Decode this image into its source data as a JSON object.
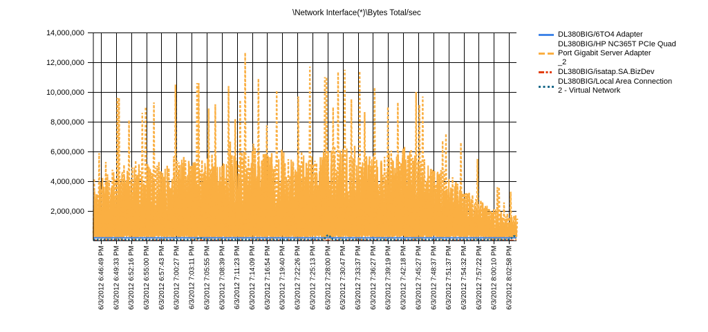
{
  "page": {
    "background": "#FFFFFF"
  },
  "chart_data": {
    "type": "line",
    "title": "\\Network Interface(*)\\Bytes Total/sec",
    "xlabel": "",
    "ylabel": "",
    "ylim": [
      0,
      14000000
    ],
    "y_tick_interval": 2000000,
    "y_tick_labels": [
      "2,000,000",
      "4,000,000",
      "6,000,000",
      "8,000,000",
      "10,000,000",
      "12,000,000",
      "14,000,000"
    ],
    "x_tick_labels": [
      "6/3/2012 6:46:49 PM",
      "6/3/2012 6:49:33 PM",
      "6/3/2012 6:52:16 PM",
      "6/3/2012 6:55:00 PM",
      "6/3/2012 6:57:43 PM",
      "6/3/2012 7:00:27 PM",
      "6/3/2012 7:03:11 PM",
      "6/3/2012 7:05:55 PM",
      "6/3/2012 7:08:39 PM",
      "6/3/2012 7:11:23 PM",
      "6/3/2012 7:14:09 PM",
      "6/3/2012 7:16:54 PM",
      "6/3/2012 7:19:40 PM",
      "6/3/2012 7:22:26 PM",
      "6/3/2012 7:25:13 PM",
      "6/3/2012 7:28:00 PM",
      "6/3/2012 7:30:47 PM",
      "6/3/2012 7:33:37 PM",
      "6/3/2012 7:36:27 PM",
      "6/3/2012 7:39:19 PM",
      "6/3/2012 7:42:18 PM",
      "6/3/2012 7:45:27 PM",
      "6/3/2012 7:48:37 PM",
      "6/3/2012 7:51:37 PM",
      "6/3/2012 7:54:32 PM",
      "6/3/2012 7:57:22 PM",
      "6/3/2012 8:00:10 PM",
      "6/3/2012 8:02:58 PM"
    ],
    "grid": true,
    "legend_position": "right",
    "series": [
      {
        "name": "DL380BIG/6TO4 Adapter",
        "color": "#4285E8",
        "style": "solid",
        "kind": "constant",
        "value": 200000
      },
      {
        "name": "DL380BIG/HP NC365T PCIe Quad Port Gigabit Server Adapter _2",
        "color": "#FAAF42",
        "style": "dashed",
        "kind": "noisy",
        "bulk_bottom": 250000,
        "bulk_top_by_tick": [
          4200000,
          5000000,
          5200000,
          5600000,
          5200000,
          5800000,
          5400000,
          6000000,
          5600000,
          6200000,
          6500000,
          6000000,
          6300000,
          6000000,
          6400000,
          6200000,
          6600000,
          6300000,
          6000000,
          6200000,
          6400000,
          5800000,
          5000000,
          4400000,
          3600000,
          2800000,
          2200000,
          1800000
        ],
        "peaks": [
          [
            0.057,
            9600000
          ],
          [
            0.082,
            8100000
          ],
          [
            0.114,
            8600000
          ],
          [
            0.142,
            9300000
          ],
          [
            0.193,
            10500000
          ],
          [
            0.245,
            10600000
          ],
          [
            0.27,
            8900000
          ],
          [
            0.319,
            10400000
          ],
          [
            0.356,
            12650000
          ],
          [
            0.389,
            10900000
          ],
          [
            0.433,
            10100000
          ],
          [
            0.482,
            9700000
          ],
          [
            0.51,
            11700000
          ],
          [
            0.547,
            11000000
          ],
          [
            0.575,
            11350000
          ],
          [
            0.592,
            11500000
          ],
          [
            0.629,
            11400000
          ],
          [
            0.662,
            10300000
          ],
          [
            0.694,
            9000000
          ],
          [
            0.719,
            9300000
          ],
          [
            0.76,
            10000000
          ],
          [
            0.776,
            9700000
          ],
          [
            0.833,
            7200000
          ],
          [
            0.866,
            6600000
          ],
          [
            0.907,
            5500000
          ],
          [
            0.955,
            3600000
          ],
          [
            0.985,
            3300000
          ]
        ],
        "noise_seed": 1337
      },
      {
        "name": "DL380BIG/isatap.SA.BizDev",
        "color": "#E23D0B",
        "style": "dash-dot",
        "kind": "constant",
        "value": 30000
      },
      {
        "name": "DL380BIG/Local Area Connection 2 - Virtual Network",
        "color": "#17698A",
        "style": "dotted",
        "kind": "constant-with-bumps",
        "value": 70000,
        "bumps": [
          [
            0.252,
            180000
          ],
          [
            0.555,
            380000
          ],
          [
            0.995,
            320000
          ]
        ]
      }
    ],
    "legend": {
      "items": [
        {
          "lines": [
            "DL380BIG/6TO4 Adapter"
          ]
        },
        {
          "lines": [
            "DL380BIG/HP NC365T PCIe Quad",
            "Port Gigabit Server Adapter",
            "_2"
          ]
        },
        {
          "lines": [
            "DL380BIG/isatap.SA.BizDev"
          ]
        },
        {
          "lines": [
            "DL380BIG/Local Area Connection",
            "2 - Virtual Network"
          ]
        }
      ]
    }
  }
}
